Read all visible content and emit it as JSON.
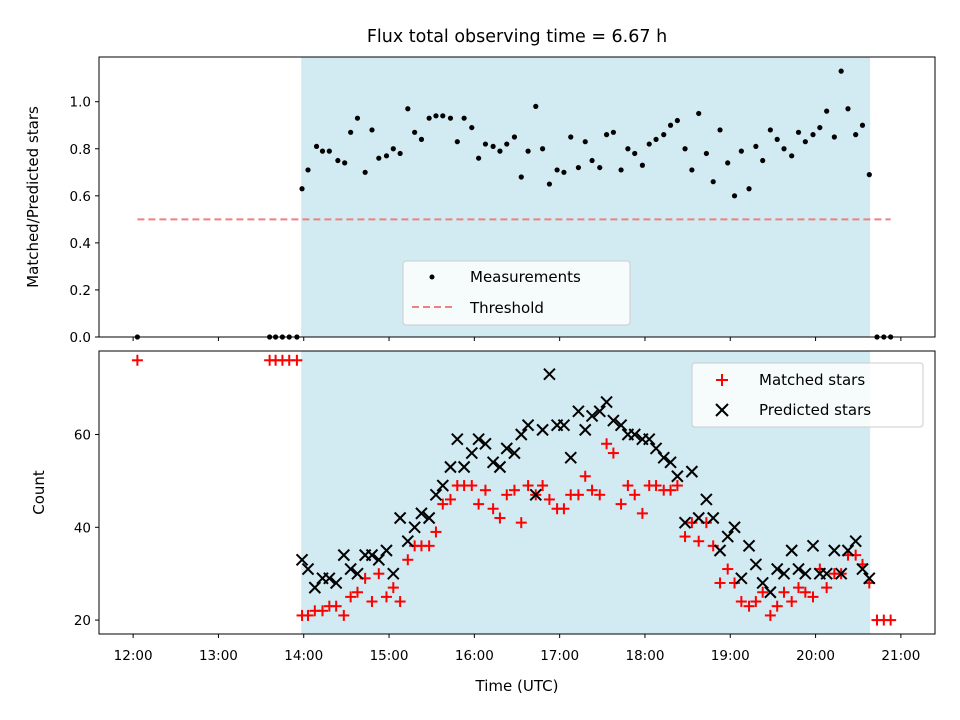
{
  "chart_data": {
    "title": "Flux total observing time = 6.67 h",
    "xlabel": "Time (UTC)",
    "x_unit": "hours UTC",
    "xlim": [
      11.6,
      21.4
    ],
    "xticks": [
      12,
      13,
      14,
      15,
      16,
      17,
      18,
      19,
      20,
      21
    ],
    "xtick_labels": [
      "12:00",
      "13:00",
      "14:00",
      "15:00",
      "16:00",
      "17:00",
      "18:00",
      "19:00",
      "20:00",
      "21:00"
    ],
    "shaded_interval": [
      13.97,
      20.64
    ],
    "shade_color": "#add8e6",
    "panels": [
      {
        "type": "scatter",
        "ylabel": "Matched/Predicted stars",
        "ylim": [
          0,
          1.19
        ],
        "yticks": [
          0.0,
          0.2,
          0.4,
          0.6,
          0.8,
          1.0
        ],
        "ytick_labels": [
          "0.0",
          "0.2",
          "0.4",
          "0.6",
          "0.8",
          "1.0"
        ],
        "legend_position": "lower-center",
        "series": [
          {
            "name": "Measurements",
            "kind": "scatter",
            "marker": "dot",
            "color": "#000000",
            "x": [
              12.05,
              13.6,
              13.67,
              13.75,
              13.83,
              13.92,
              13.98,
              14.05,
              14.15,
              14.22,
              14.3,
              14.4,
              14.48,
              14.55,
              14.63,
              14.72,
              14.8,
              14.88,
              14.97,
              15.05,
              15.13,
              15.22,
              15.3,
              15.38,
              15.47,
              15.55,
              15.63,
              15.72,
              15.8,
              15.88,
              15.97,
              16.05,
              16.13,
              16.22,
              16.3,
              16.38,
              16.47,
              16.55,
              16.63,
              16.72,
              16.8,
              16.88,
              16.97,
              17.05,
              17.13,
              17.22,
              17.3,
              17.38,
              17.47,
              17.55,
              17.63,
              17.72,
              17.8,
              17.88,
              17.97,
              18.05,
              18.13,
              18.22,
              18.3,
              18.38,
              18.47,
              18.55,
              18.63,
              18.72,
              18.8,
              18.88,
              18.97,
              19.05,
              19.13,
              19.22,
              19.3,
              19.38,
              19.47,
              19.55,
              19.63,
              19.72,
              19.8,
              19.88,
              19.97,
              20.05,
              20.13,
              20.22,
              20.3,
              20.38,
              20.47,
              20.55,
              20.63,
              20.72,
              20.8,
              20.88
            ],
            "y": [
              0.0,
              0.0,
              0.0,
              0.0,
              0.0,
              0.0,
              0.63,
              0.71,
              0.81,
              0.79,
              0.79,
              0.75,
              0.74,
              0.87,
              0.93,
              0.7,
              0.88,
              0.76,
              0.77,
              0.8,
              0.78,
              0.97,
              0.87,
              0.84,
              0.93,
              0.94,
              0.94,
              0.93,
              0.83,
              0.93,
              0.89,
              0.76,
              0.82,
              0.81,
              0.79,
              0.82,
              0.85,
              0.68,
              0.79,
              0.98,
              0.8,
              0.65,
              0.71,
              0.7,
              0.85,
              0.72,
              0.83,
              0.75,
              0.72,
              0.86,
              0.87,
              0.71,
              0.8,
              0.78,
              0.73,
              0.82,
              0.84,
              0.86,
              0.9,
              0.92,
              0.8,
              0.71,
              0.95,
              0.78,
              0.66,
              0.88,
              0.74,
              0.6,
              0.79,
              0.63,
              0.81,
              0.75,
              0.88,
              0.84,
              0.8,
              0.77,
              0.87,
              0.83,
              0.86,
              0.89,
              0.96,
              0.85,
              1.13,
              0.97,
              0.86,
              0.9,
              0.69,
              0.0,
              0.0,
              0.0
            ]
          },
          {
            "name": "Threshold",
            "kind": "line",
            "style": "dashed",
            "color": "#f08080",
            "x": [
              12.05,
              20.88
            ],
            "y": [
              0.5,
              0.5
            ]
          }
        ]
      },
      {
        "type": "scatter",
        "ylabel": "Count",
        "ylim": [
          17,
          78
        ],
        "yticks": [
          20,
          40,
          60
        ],
        "ytick_labels": [
          "20",
          "40",
          "60"
        ],
        "legend_position": "top-right",
        "series": [
          {
            "name": "Matched stars",
            "kind": "scatter",
            "marker": "plus",
            "color": "#ff0000",
            "x": [
              12.05,
              13.6,
              13.67,
              13.75,
              13.83,
              13.92,
              13.98,
              14.05,
              14.13,
              14.22,
              14.3,
              14.38,
              14.47,
              14.55,
              14.63,
              14.72,
              14.8,
              14.88,
              14.97,
              15.05,
              15.13,
              15.22,
              15.3,
              15.38,
              15.47,
              15.55,
              15.63,
              15.72,
              15.8,
              15.88,
              15.97,
              16.05,
              16.13,
              16.22,
              16.3,
              16.38,
              16.47,
              16.55,
              16.63,
              16.72,
              16.8,
              16.88,
              16.97,
              17.05,
              17.13,
              17.22,
              17.3,
              17.38,
              17.47,
              17.55,
              17.63,
              17.72,
              17.8,
              17.88,
              17.97,
              18.05,
              18.13,
              18.22,
              18.3,
              18.38,
              18.47,
              18.55,
              18.63,
              18.72,
              18.8,
              18.88,
              18.97,
              19.05,
              19.13,
              19.22,
              19.3,
              19.38,
              19.47,
              19.55,
              19.63,
              19.72,
              19.8,
              19.88,
              19.97,
              20.05,
              20.13,
              20.22,
              20.3,
              20.38,
              20.47,
              20.55,
              20.63,
              20.72,
              20.8,
              20.88
            ],
            "y": [
              76,
              76,
              76,
              76,
              76,
              76,
              21,
              21,
              22,
              22,
              23,
              23,
              21,
              25,
              26,
              29,
              24,
              30,
              25,
              27,
              24,
              33,
              36,
              36,
              36,
              39,
              45,
              46,
              49,
              49,
              49,
              45,
              48,
              44,
              42,
              47,
              48,
              41,
              49,
              47,
              49,
              46,
              44,
              44,
              47,
              47,
              51,
              48,
              47,
              58,
              56,
              45,
              49,
              47,
              43,
              49,
              49,
              48,
              48,
              49,
              38,
              41,
              37,
              41,
              36,
              28,
              31,
              28,
              24,
              23,
              24,
              26,
              21,
              23,
              26,
              24,
              27,
              26,
              25,
              31,
              27,
              30,
              30,
              34,
              34,
              32,
              28,
              20,
              20,
              20
            ]
          },
          {
            "name": "Predicted stars",
            "kind": "scatter",
            "marker": "x",
            "color": "#000000",
            "x": [
              13.98,
              14.05,
              14.13,
              14.22,
              14.3,
              14.38,
              14.47,
              14.55,
              14.63,
              14.72,
              14.8,
              14.88,
              14.97,
              15.05,
              15.13,
              15.22,
              15.3,
              15.38,
              15.47,
              15.55,
              15.63,
              15.72,
              15.8,
              15.88,
              15.97,
              16.05,
              16.13,
              16.22,
              16.3,
              16.38,
              16.47,
              16.55,
              16.63,
              16.72,
              16.8,
              16.88,
              16.97,
              17.05,
              17.13,
              17.22,
              17.3,
              17.38,
              17.47,
              17.55,
              17.63,
              17.72,
              17.8,
              17.88,
              17.97,
              18.05,
              18.13,
              18.22,
              18.3,
              18.38,
              18.47,
              18.55,
              18.63,
              18.72,
              18.8,
              18.88,
              18.97,
              19.05,
              19.13,
              19.22,
              19.3,
              19.38,
              19.47,
              19.55,
              19.63,
              19.72,
              19.8,
              19.88,
              19.97,
              20.05,
              20.13,
              20.22,
              20.3,
              20.38,
              20.47,
              20.55,
              20.63
            ],
            "y": [
              33,
              31,
              27,
              29,
              29,
              28,
              34,
              31,
              30,
              34,
              34,
              33,
              35,
              30,
              42,
              37,
              40,
              43,
              42,
              47,
              49,
              53,
              59,
              53,
              56,
              59,
              58,
              54,
              53,
              57,
              56,
              60,
              62,
              47,
              61,
              73,
              62,
              62,
              55,
              65,
              61,
              64,
              65,
              67,
              63,
              62,
              60,
              60,
              59,
              59,
              57,
              55,
              54,
              51,
              41,
              52,
              42,
              46,
              42,
              35,
              38,
              40,
              29,
              36,
              32,
              28,
              26,
              31,
              30,
              35,
              31,
              30,
              36,
              30,
              30,
              35,
              30,
              35,
              37,
              31,
              29
            ]
          }
        ]
      }
    ]
  }
}
